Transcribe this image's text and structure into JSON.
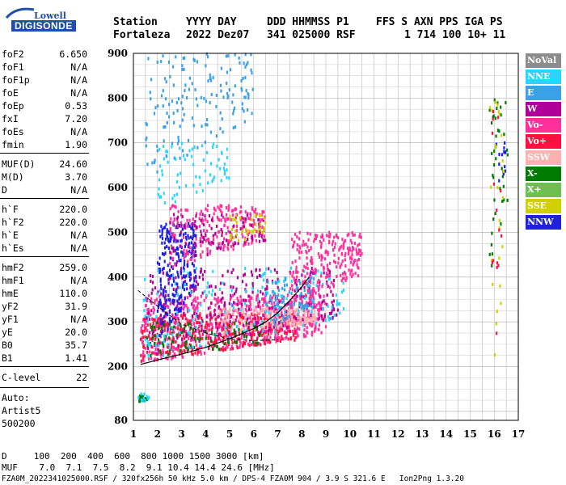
{
  "logo": {
    "brand": "Lowell",
    "product": "DIGISONDE"
  },
  "header": {
    "row1": [
      "Station",
      "YYYY DAY",
      "DDD HHMMSS P1",
      "FFS S AXN PPS IGA PS"
    ],
    "row2": [
      "Fortaleza",
      "2022 Dez07",
      "341 025000 RSF",
      "1 714 100 10+ 11"
    ]
  },
  "parameters": [
    {
      "group": 1,
      "items": [
        {
          "name": "foF2",
          "value": "6.650"
        },
        {
          "name": "foF1",
          "value": "N/A"
        },
        {
          "name": "foF1p",
          "value": "N/A"
        },
        {
          "name": "foE",
          "value": "N/A"
        },
        {
          "name": "foEp",
          "value": "0.53"
        },
        {
          "name": "fxI",
          "value": "7.20"
        },
        {
          "name": "foEs",
          "value": "N/A"
        },
        {
          "name": "fmin",
          "value": "1.90"
        }
      ]
    },
    {
      "group": 2,
      "items": [
        {
          "name": "MUF(D)",
          "value": "24.60"
        },
        {
          "name": "M(D)",
          "value": "3.70"
        },
        {
          "name": "D",
          "value": "N/A"
        }
      ]
    },
    {
      "group": 3,
      "items": [
        {
          "name": "h`F",
          "value": "220.0"
        },
        {
          "name": "h`F2",
          "value": "220.0"
        },
        {
          "name": "h`E",
          "value": "N/A"
        },
        {
          "name": "h`Es",
          "value": "N/A"
        }
      ]
    },
    {
      "group": 4,
      "items": [
        {
          "name": "hmF2",
          "value": "259.0"
        },
        {
          "name": "hmF1",
          "value": "N/A"
        },
        {
          "name": "hmE",
          "value": "110.0"
        },
        {
          "name": "yF2",
          "value": "31.9"
        },
        {
          "name": "yF1",
          "value": "N/A"
        },
        {
          "name": "yE",
          "value": "20.0"
        },
        {
          "name": "B0",
          "value": "35.7"
        },
        {
          "name": "B1",
          "value": "1.41"
        }
      ]
    },
    {
      "group": 5,
      "items": [
        {
          "name": "C-level",
          "value": "22"
        }
      ]
    }
  ],
  "autoscaler": {
    "line1": "Auto:",
    "line2": "Artist5",
    "line3": "500200"
  },
  "legend": [
    {
      "label": "NoVal",
      "color": "#8c8c8c"
    },
    {
      "label": "NNE",
      "color": "#26d6ff"
    },
    {
      "label": "E",
      "color": "#3aa0e8"
    },
    {
      "label": "W",
      "color": "#b0009a"
    },
    {
      "label": "Vo-",
      "color": "#ff2f9c"
    },
    {
      "label": "Vo+",
      "color": "#ff1040"
    },
    {
      "label": "SSW",
      "color": "#ffb0b0"
    },
    {
      "label": "X-",
      "color": "#007a00"
    },
    {
      "label": "X+",
      "color": "#6cbf50"
    },
    {
      "label": "SSE",
      "color": "#d0d000"
    },
    {
      "label": "NNW",
      "color": "#2020e0"
    }
  ],
  "footer": {
    "d_row": "D     100  200  400  600  800 1000 1500 3000 [km]",
    "muf_row": "MUF    7.0  7.1  7.5  8.2  9.1 10.4 14.4 24.6 [MHz]",
    "info_row": "FZA0M_2022341025000.RSF / 320fx256h 50 kHz 5.0 km / DPS-4 FZA0M 904 / 3.9 S 321.6 E   Ion2Png 1.3.20"
  },
  "chart_data": {
    "type": "scatter",
    "x_axis": {
      "min": 1,
      "max": 17,
      "ticks": [
        1,
        2,
        3,
        4,
        5,
        6,
        7,
        8,
        9,
        10,
        11,
        12,
        13,
        14,
        15,
        16,
        17
      ]
    },
    "y_axis": {
      "min": 80,
      "max": 900,
      "ticks": [
        80,
        200,
        300,
        400,
        500,
        600,
        700,
        800,
        900
      ]
    },
    "grid": true,
    "legend_placement": "right",
    "trace_curve": [
      [
        1.3,
        205
      ],
      [
        2,
        215
      ],
      [
        3,
        228
      ],
      [
        4,
        243
      ],
      [
        5,
        262
      ],
      [
        6,
        285
      ],
      [
        6.5,
        300
      ],
      [
        7,
        320
      ],
      [
        7.5,
        348
      ],
      [
        8,
        378
      ],
      [
        8.3,
        400
      ]
    ],
    "dashed_curve": [
      [
        1.2,
        370
      ],
      [
        2,
        335
      ],
      [
        3,
        295
      ],
      [
        4,
        275
      ],
      [
        5,
        262
      ],
      [
        6,
        258
      ],
      [
        7,
        260
      ]
    ],
    "clusters": [
      {
        "color": "#ff2f9c",
        "x": [
          1.3,
          9.0
        ],
        "y": [
          205,
          360
        ],
        "n": 700
      },
      {
        "color": "#ff1040",
        "x": [
          1.3,
          7.8
        ],
        "y": [
          210,
          320
        ],
        "n": 350
      },
      {
        "color": "#ffb0b0",
        "x": [
          4.5,
          8.6
        ],
        "y": [
          270,
          330
        ],
        "n": 220
      },
      {
        "color": "#b0009a",
        "x": [
          1.5,
          9.5
        ],
        "y": [
          220,
          420
        ],
        "n": 300
      },
      {
        "color": "#2020e0",
        "x": [
          2.0,
          3.6
        ],
        "y": [
          250,
          520
        ],
        "n": 260
      },
      {
        "color": "#007a00",
        "x": [
          1.5,
          6.5
        ],
        "y": [
          215,
          300
        ],
        "n": 90
      },
      {
        "color": "#26d6ff",
        "x": [
          1.4,
          9.8
        ],
        "y": [
          215,
          420
        ],
        "n": 160
      },
      {
        "color": "#3aa0e8",
        "x": [
          6.5,
          8.5
        ],
        "y": [
          280,
          400
        ],
        "n": 90
      },
      {
        "color": "#ff2f9c",
        "x": [
          7.5,
          10.5
        ],
        "y": [
          330,
          500
        ],
        "n": 260
      },
      {
        "color": "#ff2f9c",
        "x": [
          2.5,
          6.5
        ],
        "y": [
          420,
          560
        ],
        "n": 240
      },
      {
        "color": "#b0009a",
        "x": [
          2.5,
          6.5
        ],
        "y": [
          430,
          540
        ],
        "n": 90
      },
      {
        "color": "#3aa0e8",
        "x": [
          1.5,
          6.0
        ],
        "y": [
          620,
          900
        ],
        "n": 160
      },
      {
        "color": "#26d6ff",
        "x": [
          2.0,
          5.0
        ],
        "y": [
          550,
          700
        ],
        "n": 70
      },
      {
        "color": "#d0d000",
        "x": [
          5.0,
          6.5
        ],
        "y": [
          470,
          540
        ],
        "n": 40
      },
      {
        "color": "#007a00",
        "x": [
          15.8,
          16.6
        ],
        "y": [
          400,
          800
        ],
        "n": 40
      },
      {
        "color": "#2020e0",
        "x": [
          16.0,
          16.5
        ],
        "y": [
          590,
          700
        ],
        "n": 15
      },
      {
        "color": "#d0d000",
        "x": [
          15.8,
          16.5
        ],
        "y": [
          100,
          800
        ],
        "n": 25
      },
      {
        "color": "#ff1040",
        "x": [
          15.9,
          16.3
        ],
        "y": [
          120,
          780
        ],
        "n": 15
      },
      {
        "color": "#007a00",
        "x": [
          1.2,
          1.6
        ],
        "y": [
          120,
          135
        ],
        "n": 20
      },
      {
        "color": "#26d6ff",
        "x": [
          1.2,
          1.7
        ],
        "y": [
          118,
          140
        ],
        "n": 10
      }
    ]
  }
}
